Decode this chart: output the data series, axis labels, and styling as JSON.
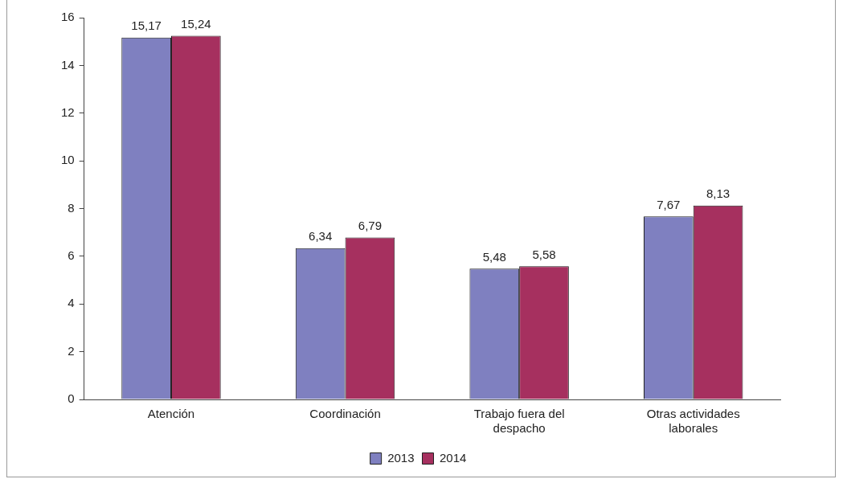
{
  "chart_data": {
    "type": "bar",
    "categories": [
      "Atención",
      "Coordinación",
      "Trabajo fuera del despacho",
      "Otras actividades laborales"
    ],
    "series": [
      {
        "name": "2013",
        "color": "#7f80c0",
        "values": [
          15.17,
          6.34,
          5.48,
          7.67
        ],
        "value_labels": [
          "15,17",
          "6,34",
          "5,48",
          "7,67"
        ]
      },
      {
        "name": "2014",
        "color": "#a6305f",
        "values": [
          15.24,
          6.79,
          5.58,
          8.13
        ],
        "value_labels": [
          "15,24",
          "6,79",
          "5,58",
          "8,13"
        ]
      }
    ],
    "ylim": [
      0,
      16
    ],
    "yticks": [
      0,
      2,
      4,
      6,
      8,
      10,
      12,
      14,
      16
    ],
    "grid": false,
    "legend": "bottom"
  }
}
